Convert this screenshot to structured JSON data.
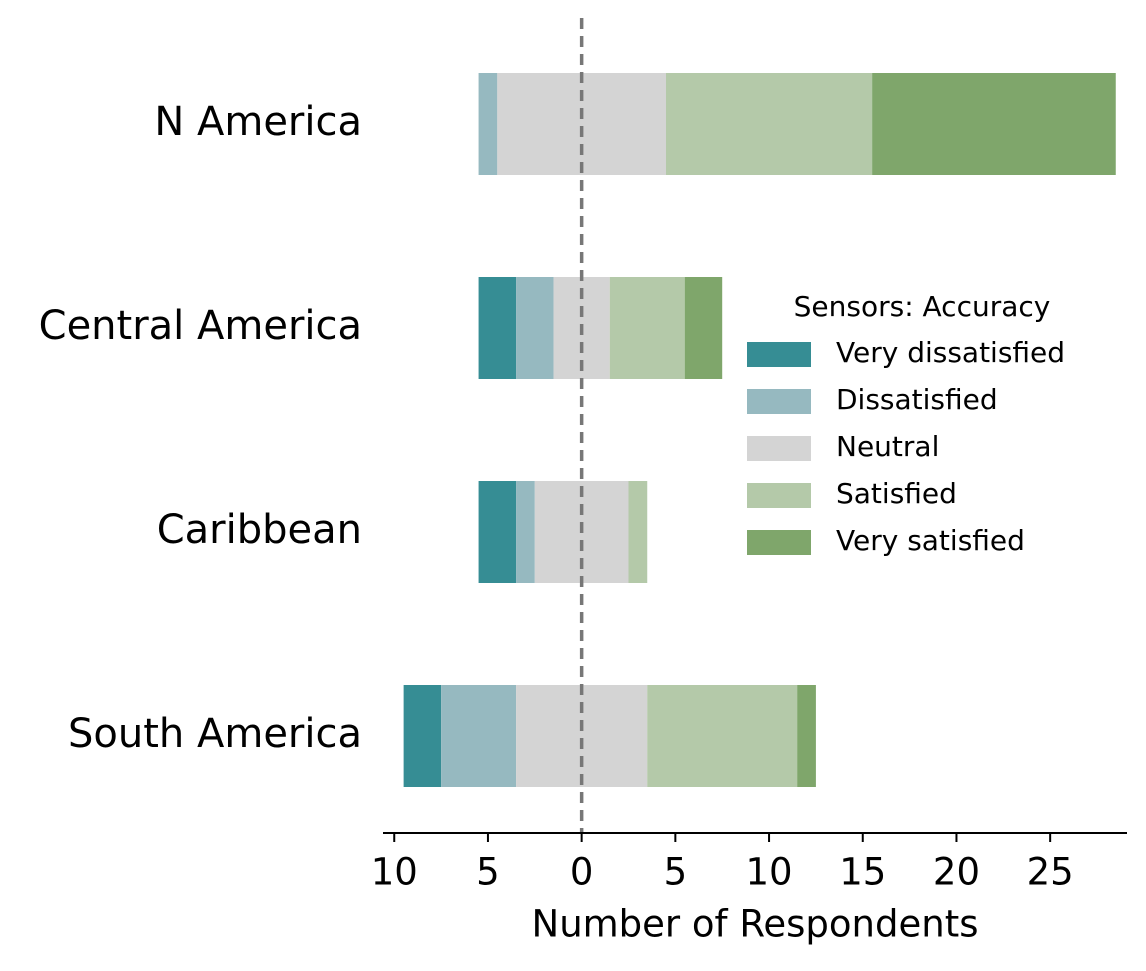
{
  "chart_data": {
    "type": "diverging_bar",
    "xlabel": "Number of Respondents",
    "legend_title": "Sensors: Accuracy",
    "categories": [
      "N America",
      "Central America",
      "Caribbean",
      "South America"
    ],
    "neutral_series": 2,
    "series": [
      {
        "name": "Very dissatisfied",
        "color": "#368d94",
        "values": [
          0,
          2,
          2,
          2
        ]
      },
      {
        "name": "Dissatisfied",
        "color": "#96b9c0",
        "values": [
          1,
          2,
          1,
          4
        ]
      },
      {
        "name": "Neutral",
        "color": "#d4d4d4",
        "values": [
          9,
          3,
          5,
          7
        ]
      },
      {
        "name": "Satisfied",
        "color": "#b4c9a9",
        "values": [
          11,
          4,
          1,
          8
        ]
      },
      {
        "name": "Very satisfied",
        "color": "#7fa66b",
        "values": [
          13,
          2,
          0,
          1
        ]
      }
    ],
    "xlim": [
      -10.6,
      29.1
    ],
    "xticks": [
      {
        "value": -10,
        "label": "10"
      },
      {
        "value": -5,
        "label": "5"
      },
      0,
      5,
      10,
      15,
      20,
      25
    ]
  }
}
